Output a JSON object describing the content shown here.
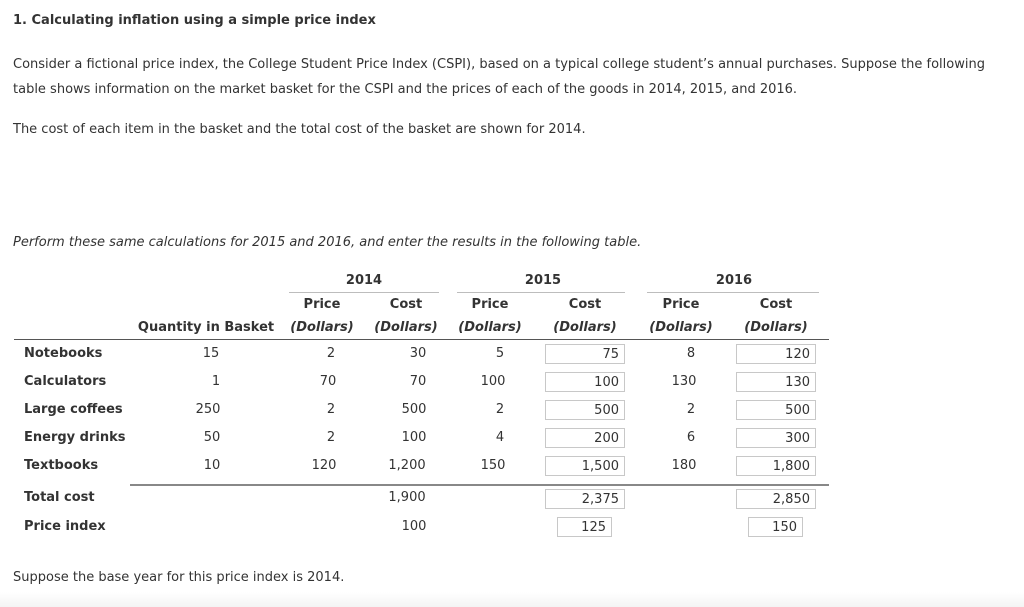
{
  "title": "1. Calculating inflation using a simple price index",
  "intro": "Consider a fictional price index, the College Student Price Index (CSPI), based on a typical college student’s annual purchases. Suppose the following table shows information on the market basket for the CSPI and the prices of each of the goods in 2014, 2015, and 2016.",
  "cost_note": "The cost of each item in the basket and the total cost of the basket are shown for 2014.",
  "perform": "Perform these same calculations for 2015 and 2016, and enter the results in the following table.",
  "base_year_note": "Suppose the base year for this price index is 2014.",
  "table": {
    "years": [
      "2014",
      "2015",
      "2016"
    ],
    "header_price": "Price",
    "header_cost": "Cost",
    "header_dollars": "(Dollars)",
    "header_quantity": "Quantity in Basket",
    "rows": [
      {
        "label": "Notebooks",
        "qty": "15",
        "p2014": "2",
        "c2014": "30",
        "p2015": "5",
        "c2015": "75",
        "p2016": "8",
        "c2016": "120"
      },
      {
        "label": "Calculators",
        "qty": "1",
        "p2014": "70",
        "c2014": "70",
        "p2015": "100",
        "c2015": "100",
        "p2016": "130",
        "c2016": "130"
      },
      {
        "label": "Large coffees",
        "qty": "250",
        "p2014": "2",
        "c2014": "500",
        "p2015": "2",
        "c2015": "500",
        "p2016": "2",
        "c2016": "500"
      },
      {
        "label": "Energy drinks",
        "qty": "50",
        "p2014": "2",
        "c2014": "100",
        "p2015": "4",
        "c2015": "200",
        "p2016": "6",
        "c2016": "300"
      },
      {
        "label": "Textbooks",
        "qty": "10",
        "p2014": "120",
        "c2014": "1,200",
        "p2015": "150",
        "c2015": "1,500",
        "p2016": "180",
        "c2016": "1,800"
      }
    ],
    "total": {
      "label": "Total cost",
      "c2014": "1,900",
      "c2015": "2,375",
      "c2016": "2,850"
    },
    "index": {
      "label": "Price index",
      "c2014": "100",
      "c2015": "125",
      "c2016": "150"
    }
  }
}
